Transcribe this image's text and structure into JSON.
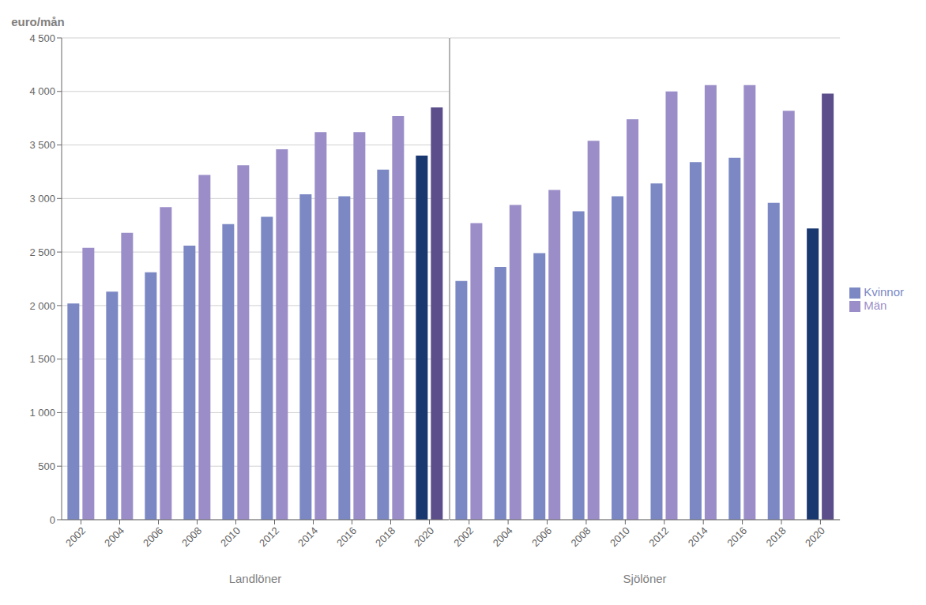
{
  "chart_data": [
    {
      "type": "bar",
      "xlabel": "Landlöner",
      "ylabel": "euro/mån",
      "categories": [
        "2002",
        "2004",
        "2006",
        "2008",
        "2010",
        "2012",
        "2014",
        "2016",
        "2018",
        "2020"
      ],
      "series": [
        {
          "name": "Kvinnor",
          "color": "#7B88C4",
          "colors": [
            "#7B88C4",
            "#7B88C4",
            "#7B88C4",
            "#7B88C4",
            "#7B88C4",
            "#7B88C4",
            "#7B88C4",
            "#7B88C4",
            "#7B88C4",
            "#1A3870"
          ],
          "values": [
            2020,
            2130,
            2310,
            2560,
            2760,
            2830,
            3040,
            3020,
            3270,
            3400
          ]
        },
        {
          "name": "Män",
          "color": "#9B8EC8",
          "colors": [
            "#9B8EC8",
            "#9B8EC8",
            "#9B8EC8",
            "#9B8EC8",
            "#9B8EC8",
            "#9B8EC8",
            "#9B8EC8",
            "#9B8EC8",
            "#9B8EC8",
            "#5C4E8A"
          ],
          "values": [
            2540,
            2680,
            2920,
            3220,
            3310,
            3460,
            3620,
            3620,
            3770,
            3850
          ]
        }
      ],
      "ylim": [
        0,
        4500
      ],
      "yticks": [
        0,
        500,
        {
          "value": 1000,
          "label": "1 000"
        },
        {
          "value": 1500,
          "label": "1 500"
        },
        {
          "value": 2000,
          "label": "2 000"
        },
        {
          "value": 2500,
          "label": "2 500"
        },
        {
          "value": 3000,
          "label": "3 000"
        },
        {
          "value": 3500,
          "label": "3 500"
        },
        {
          "value": 4000,
          "label": "4 000"
        },
        {
          "value": 4500,
          "label": "4 500"
        }
      ],
      "grid": true
    },
    {
      "type": "bar",
      "xlabel": "Sjölöner",
      "categories": [
        "2002",
        "2004",
        "2006",
        "2008",
        "2010",
        "2012",
        "2014",
        "2016",
        "2018",
        "2020"
      ],
      "series": [
        {
          "name": "Kvinnor",
          "color": "#7B88C4",
          "colors": [
            "#7B88C4",
            "#7B88C4",
            "#7B88C4",
            "#7B88C4",
            "#7B88C4",
            "#7B88C4",
            "#7B88C4",
            "#7B88C4",
            "#7B88C4",
            "#1A3870"
          ],
          "values": [
            2230,
            2360,
            2490,
            2880,
            3020,
            3140,
            3340,
            3380,
            2960,
            2720
          ]
        },
        {
          "name": "Män",
          "color": "#9B8EC8",
          "colors": [
            "#9B8EC8",
            "#9B8EC8",
            "#9B8EC8",
            "#9B8EC8",
            "#9B8EC8",
            "#9B8EC8",
            "#9B8EC8",
            "#9B8EC8",
            "#9B8EC8",
            "#5C4E8A"
          ],
          "values": [
            2770,
            2940,
            3080,
            3540,
            3740,
            4000,
            4060,
            4060,
            3820,
            3980
          ]
        }
      ],
      "ylim": [
        0,
        4500
      ],
      "yticks": [
        0,
        500,
        {
          "value": 1000,
          "label": "1 000"
        },
        {
          "value": 1500,
          "label": "1 500"
        },
        {
          "value": 2000,
          "label": "2 000"
        },
        {
          "value": 2500,
          "label": "2 500"
        },
        {
          "value": 3000,
          "label": "3 000"
        },
        {
          "value": 3500,
          "label": "3 500"
        },
        {
          "value": 4000,
          "label": "4 000"
        },
        {
          "value": 4500,
          "label": "4 500"
        }
      ],
      "grid": true,
      "tick_labels": "x",
      "legend": "right"
    }
  ]
}
